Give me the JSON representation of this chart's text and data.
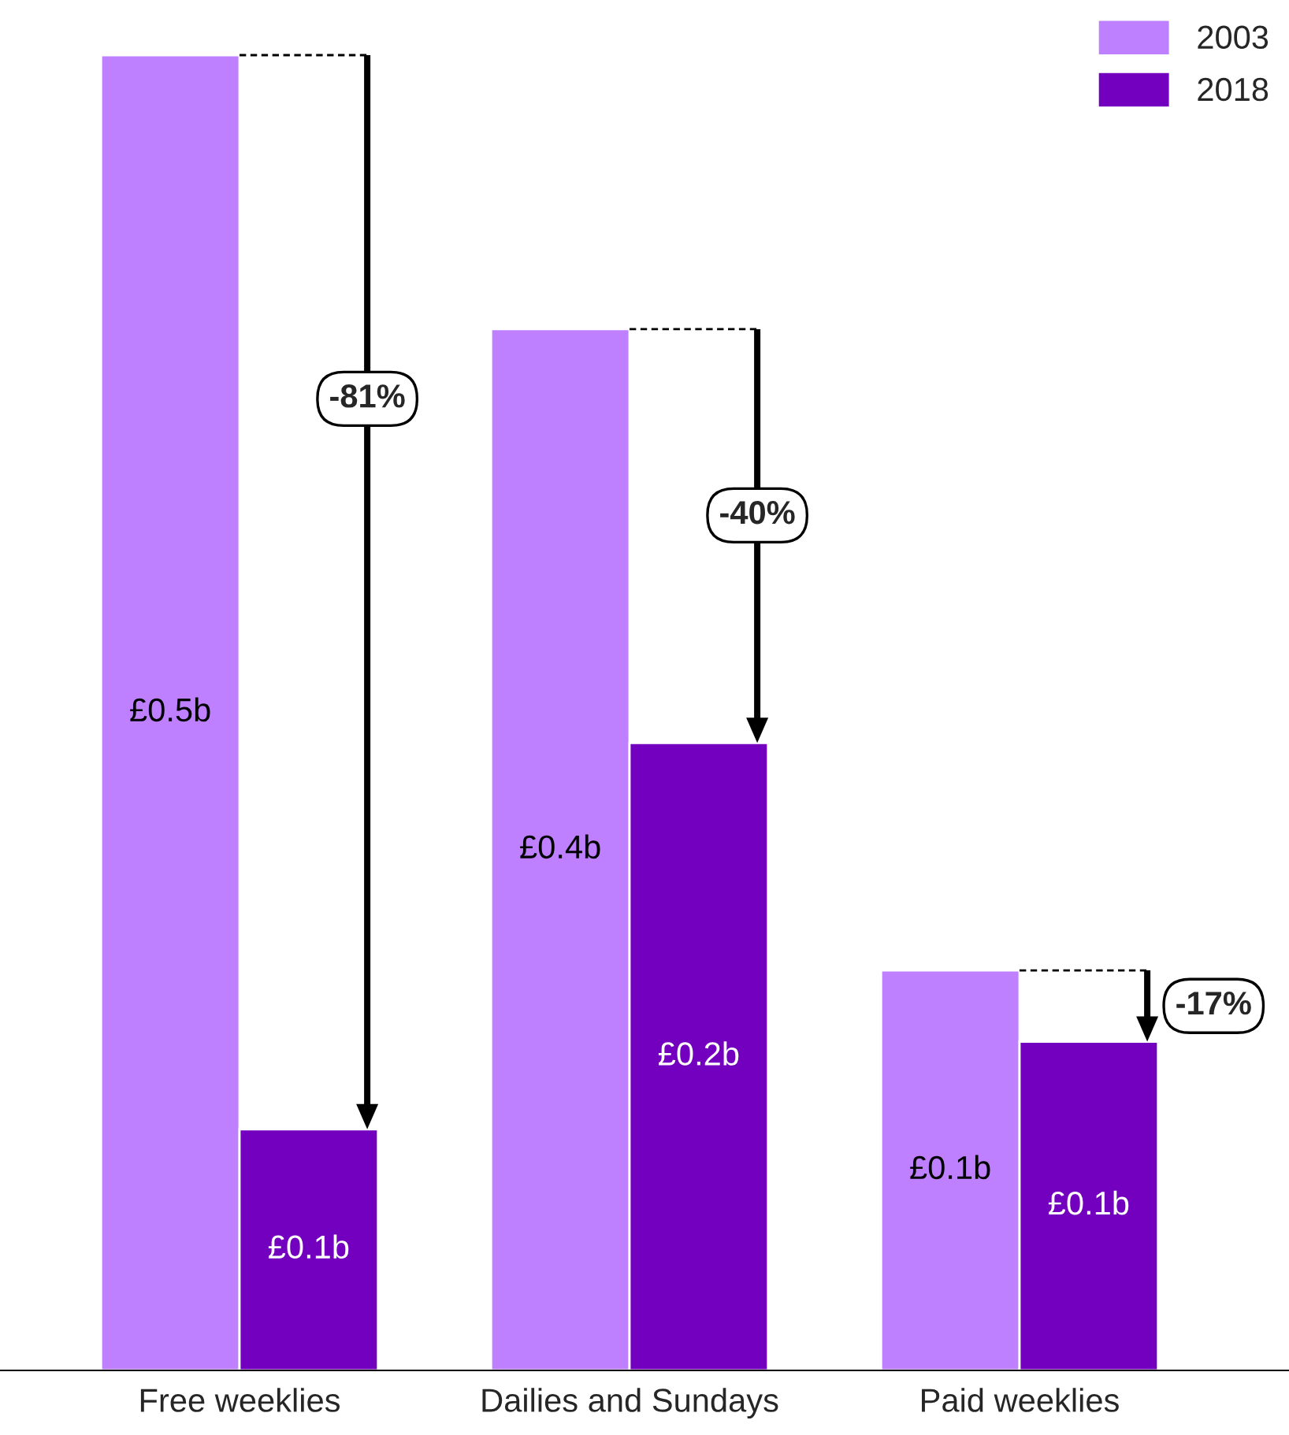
{
  "chart_data": {
    "type": "bar",
    "categories": [
      "Free weeklies",
      "Dailies and Sundays",
      "Paid weeklies"
    ],
    "series": [
      {
        "name": "2003",
        "color": "#bf80ff",
        "values": [
          0.48,
          0.38,
          0.146
        ],
        "value_labels": [
          "£0.5b",
          "£0.4b",
          "£0.1b"
        ]
      },
      {
        "name": "2018",
        "color": "#7300bf",
        "values": [
          0.088,
          0.229,
          0.12
        ],
        "value_labels": [
          "£0.1b",
          "£0.2b",
          "£0.1b"
        ]
      }
    ],
    "annotations": [
      "-81%",
      "-40%",
      "-17%"
    ],
    "legend": "top right"
  }
}
